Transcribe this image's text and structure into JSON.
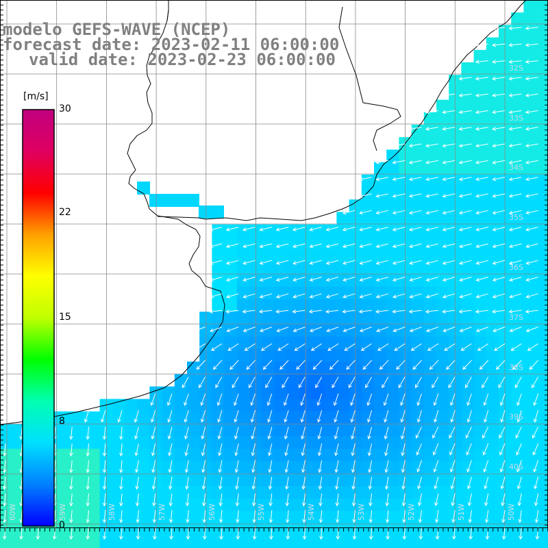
{
  "title": {
    "line1": "modelo GEFS-WAVE (NCEP)",
    "line2": "forecast date: 2023-02-11 06:00:00",
    "line3": "valid date: 2023-02-23 06:00:00"
  },
  "colorbar": {
    "unit": "[m/s]",
    "min": 0,
    "max": 30,
    "ticks": [
      0,
      8,
      15,
      22,
      30
    ],
    "colors": [
      "#0000ff",
      "#0080ff",
      "#00e0ff",
      "#00ffb0",
      "#00ff00",
      "#c0ff00",
      "#ffff00",
      "#ffa000",
      "#ff0000",
      "#e00060",
      "#c00080"
    ]
  },
  "field": {
    "variable": "wind speed and direction",
    "wind_direction": "from east / northeast in north, from north in south",
    "typical_speed_ms": 8
  },
  "latitude_labels": [
    "32S",
    "33S",
    "34S",
    "35S",
    "36S",
    "37S",
    "38S",
    "39S",
    "40S"
  ],
  "longitude_labels": [
    "60W",
    "59W",
    "58W",
    "57W",
    "56W",
    "55W",
    "54W",
    "53W",
    "52W",
    "51W",
    "50W"
  ],
  "icons": {
    "arrow": "wind-vector-arrow"
  }
}
